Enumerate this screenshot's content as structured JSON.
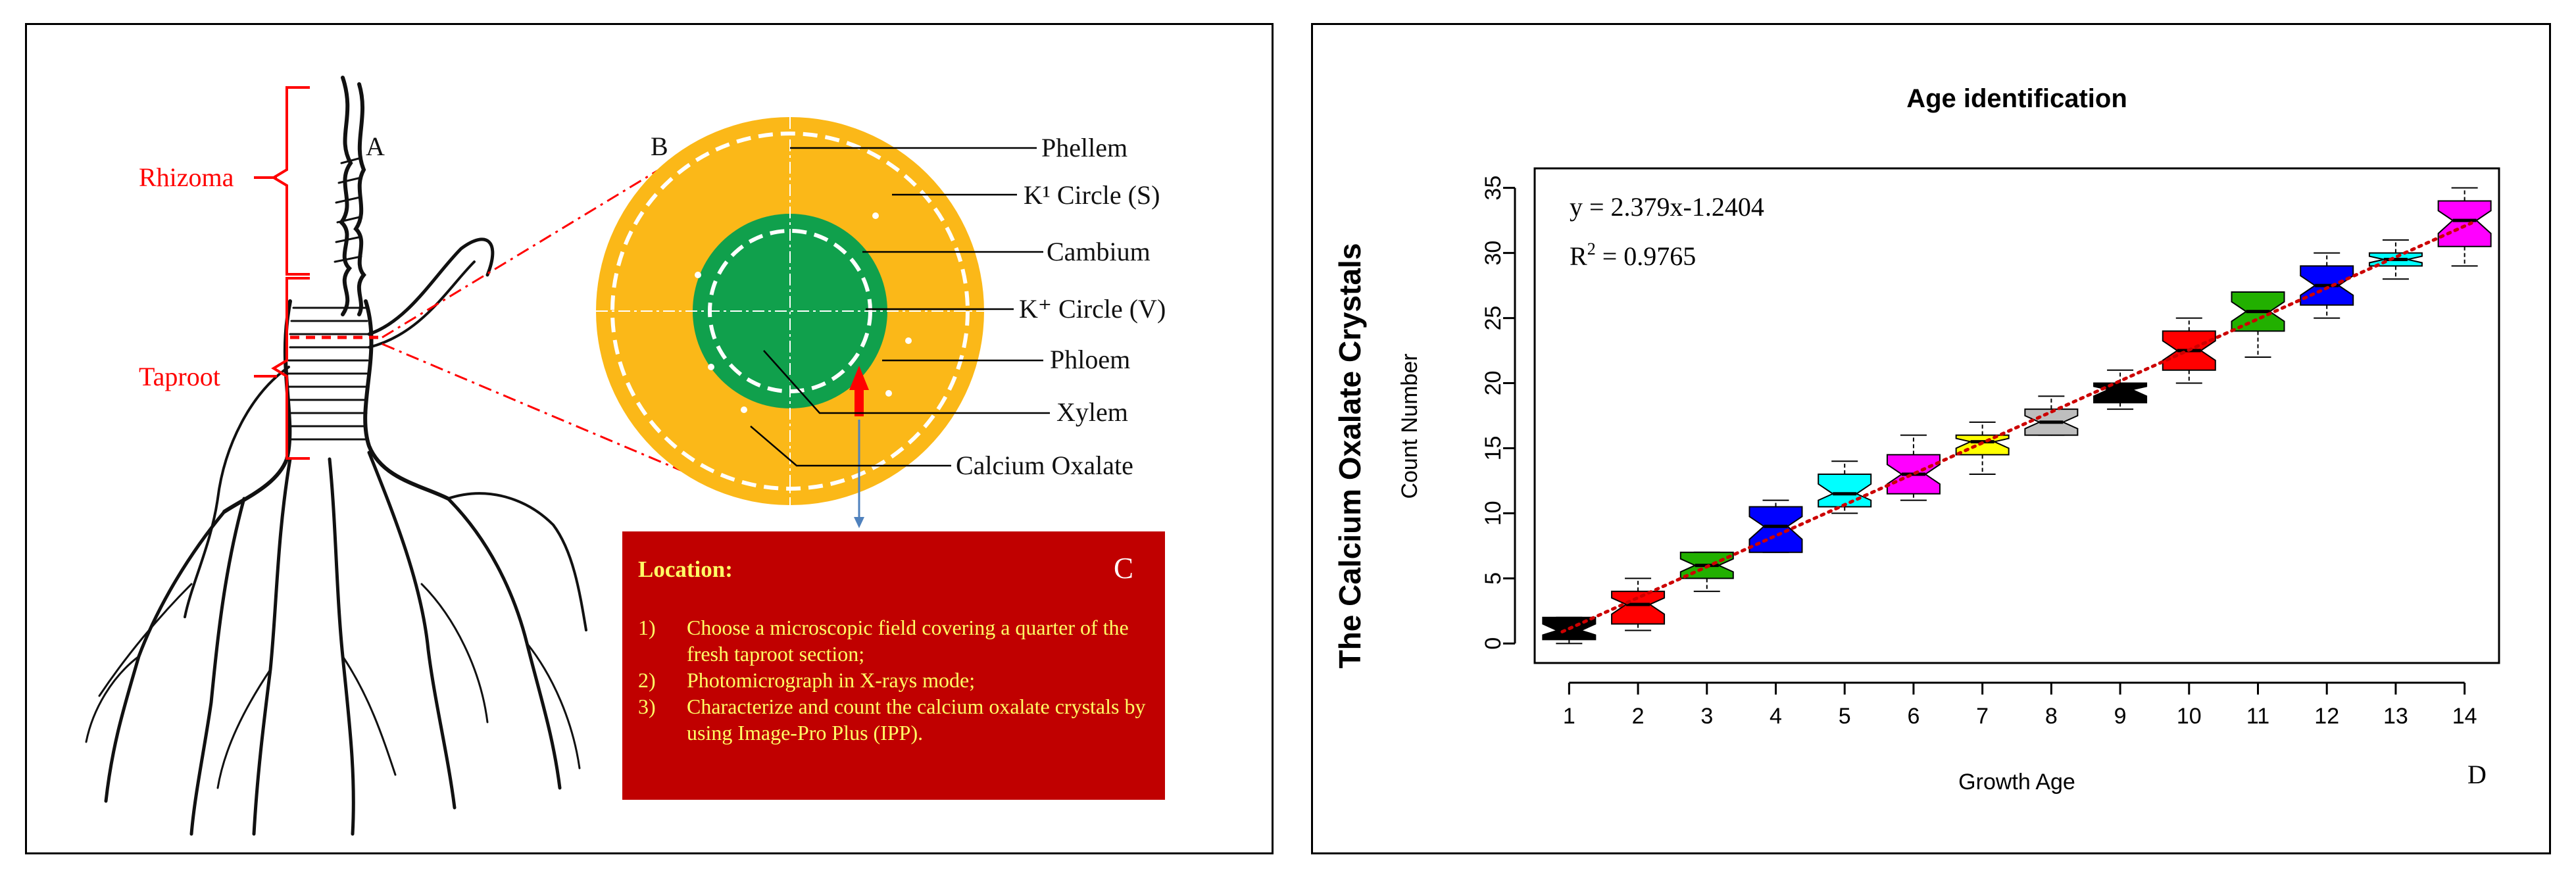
{
  "panel_a": {
    "letter": "A",
    "labels": {
      "rhizoma": "Rhizoma",
      "taproot": "Taproot"
    }
  },
  "panel_b": {
    "letter": "B",
    "labels": [
      "Phellem",
      "K¹ Circle (S)",
      "Cambium",
      "K⁺ Circle (V)",
      "Phloem",
      "Xylem",
      "Calcium Oxalate"
    ]
  },
  "panel_c": {
    "letter": "C",
    "title": "Location:",
    "steps": [
      {
        "num": "1)",
        "text": "Choose a microscopic field covering a quarter of the fresh taproot section;"
      },
      {
        "num": "2)",
        "text": "Photomicrograph in X-rays mode;"
      },
      {
        "num": "3)",
        "text": "Characterize and count the calcium oxalate crystals by using Image-Pro Plus (IPP)."
      }
    ]
  },
  "panel_d": {
    "letter": "D",
    "side_title": "The Calcium Oxalate Crystals"
  },
  "colors": {
    "red_label": "#ff0000",
    "orange": "#fbb818",
    "green": "#10a04c",
    "box_red": "#c00000",
    "box_text": "#ffff66"
  },
  "chart_data": {
    "type": "boxplot",
    "title": "Age identification",
    "xlabel": "Growth Age",
    "ylabel": "Count Number",
    "xlim": [
      0.5,
      14.5
    ],
    "ylim": [
      -1.5,
      36.5
    ],
    "x_ticks": [
      "1",
      "2",
      "3",
      "4",
      "5",
      "6",
      "7",
      "8",
      "9",
      "10",
      "11",
      "12",
      "13",
      "14"
    ],
    "y_ticks": [
      0,
      5,
      10,
      15,
      20,
      25,
      30,
      35
    ],
    "equation": "y = 2.379x-1.2404",
    "r2_label": "R",
    "r2_sup": "2",
    "r2_value": " = 0.9765",
    "regression": {
      "slope": 2.379,
      "intercept": -1.2404
    },
    "boxes": [
      {
        "age": 1,
        "min": 0,
        "q1": 0.3,
        "median": 1,
        "q3": 2,
        "max": 2,
        "color": "#000000"
      },
      {
        "age": 2,
        "min": 1,
        "q1": 1.5,
        "median": 3,
        "q3": 4,
        "max": 5,
        "color": "#ff0000"
      },
      {
        "age": 3,
        "min": 4,
        "q1": 5,
        "median": 6,
        "q3": 7,
        "max": 7,
        "color": "#22b000"
      },
      {
        "age": 4,
        "min": 7,
        "q1": 7,
        "median": 9,
        "q3": 10.5,
        "max": 11,
        "color": "#0000ff"
      },
      {
        "age": 5,
        "min": 10,
        "q1": 10.5,
        "median": 11.5,
        "q3": 13,
        "max": 14,
        "color": "#00ffff"
      },
      {
        "age": 6,
        "min": 11,
        "q1": 11.5,
        "median": 13,
        "q3": 14.5,
        "max": 16,
        "color": "#ff00ff"
      },
      {
        "age": 7,
        "min": 13,
        "q1": 14.5,
        "median": 15.5,
        "q3": 16,
        "max": 17,
        "color": "#ffff00"
      },
      {
        "age": 8,
        "min": 16,
        "q1": 16,
        "median": 17,
        "q3": 18,
        "max": 19,
        "color": "#bebebe"
      },
      {
        "age": 9,
        "min": 18,
        "q1": 18.5,
        "median": 19.5,
        "q3": 20,
        "max": 21,
        "color": "#000000"
      },
      {
        "age": 10,
        "min": 20,
        "q1": 21,
        "median": 22.5,
        "q3": 24,
        "max": 25,
        "color": "#ff0000"
      },
      {
        "age": 11,
        "min": 22,
        "q1": 24,
        "median": 25.5,
        "q3": 27,
        "max": 27,
        "color": "#22b000"
      },
      {
        "age": 12,
        "min": 25,
        "q1": 26,
        "median": 27.5,
        "q3": 29,
        "max": 30,
        "color": "#0000ff"
      },
      {
        "age": 13,
        "min": 28,
        "q1": 29,
        "median": 29.5,
        "q3": 30,
        "max": 31,
        "color": "#00ffff"
      },
      {
        "age": 14,
        "min": 29,
        "q1": 30.5,
        "median": 32.5,
        "q3": 34,
        "max": 35,
        "color": "#ff00ff"
      }
    ]
  }
}
